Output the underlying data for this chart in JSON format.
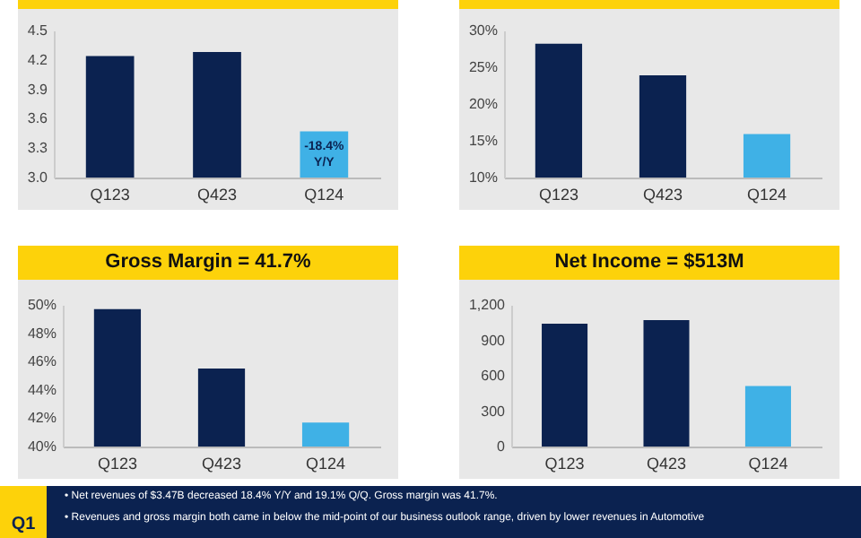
{
  "chart_data": [
    {
      "type": "bar",
      "categories": [
        "Q123",
        "Q423",
        "Q124"
      ],
      "values": [
        4.24,
        4.28,
        3.47
      ],
      "colors": [
        "#0b2250",
        "#0b2250",
        "#3fb1e6"
      ],
      "ylim": [
        3,
        4.5
      ],
      "yticks": [
        {
          "value": 3,
          "label": "3.0"
        },
        {
          "value": 3.3,
          "label": "3.3"
        },
        {
          "value": 3.6,
          "label": "3.6"
        },
        {
          "value": 3.9,
          "label": "3.9"
        },
        {
          "value": 4.2,
          "label": "4.2"
        },
        {
          "value": 4.5,
          "label": "4.5"
        }
      ],
      "annotations": [
        {
          "text": "-18.4%\nY/Y",
          "x": "Q124",
          "y": 3.47
        }
      ]
    },
    {
      "type": "bar",
      "categories": [
        "Q123",
        "Q423",
        "Q124"
      ],
      "values": [
        28.2,
        23.9,
        15.9
      ],
      "colors": [
        "#0b2250",
        "#0b2250",
        "#3fb1e6"
      ],
      "ylim": [
        10,
        30
      ],
      "yticks": [
        {
          "value": 10,
          "label": "10%"
        },
        {
          "value": 15,
          "label": "15%"
        },
        {
          "value": 20,
          "label": "20%"
        },
        {
          "value": 25,
          "label": "25%"
        },
        {
          "value": 30,
          "label": "30%"
        }
      ]
    },
    {
      "type": "bar",
      "title": "Gross Margin = 41.7%",
      "categories": [
        "Q123",
        "Q423",
        "Q124"
      ],
      "values": [
        49.7,
        45.5,
        41.7
      ],
      "colors": [
        "#0b2250",
        "#0b2250",
        "#3fb1e6"
      ],
      "ylim": [
        40,
        50
      ],
      "yticks": [
        {
          "value": 40,
          "label": "40%"
        },
        {
          "value": 42,
          "label": "42%"
        },
        {
          "value": 44,
          "label": "44%"
        },
        {
          "value": 46,
          "label": "46%"
        },
        {
          "value": 48,
          "label": "48%"
        },
        {
          "value": 50,
          "label": "50%"
        }
      ]
    },
    {
      "type": "bar",
      "title": "Net Income = $513M",
      "categories": [
        "Q123",
        "Q423",
        "Q124"
      ],
      "values": [
        1040,
        1070,
        513
      ],
      "colors": [
        "#0b2250",
        "#0b2250",
        "#3fb1e6"
      ],
      "ylim": [
        0,
        1200
      ],
      "yticks": [
        0,
        300,
        600,
        900,
        {
          "value": 1200,
          "label": "1,200"
        }
      ]
    },
    {
      "type": "other",
      "title": "Q1",
      "annotations": [
        "•    Net revenues of $3.47B decreased 18.4% Y/Y and 19.1% Q/Q. Gross margin was 41.7%.",
        "•    Revenues and gross margin both came in below the mid-point of our business outlook range, driven by lower revenues in Automotive"
      ]
    }
  ]
}
